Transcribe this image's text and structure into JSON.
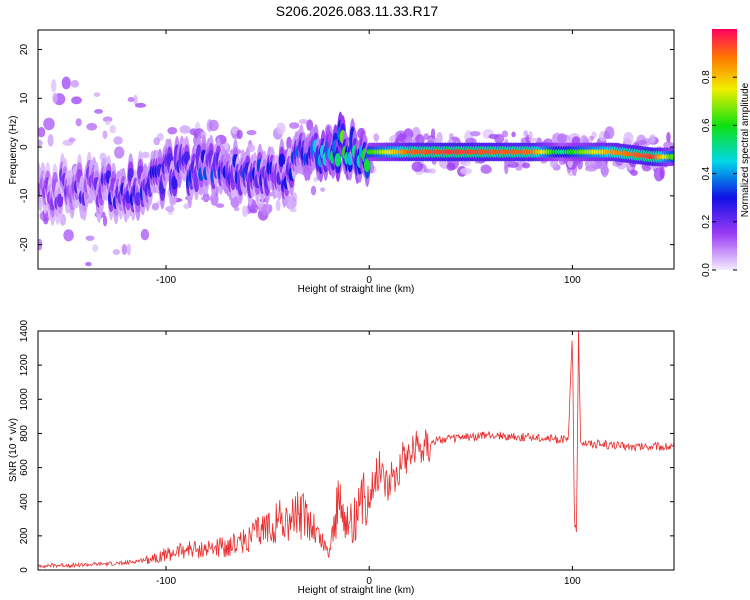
{
  "title": "S206.2026.083.11.33.R17",
  "chart_data": [
    {
      "type": "heatmap",
      "xlabel": "Height of straight line (km)",
      "ylabel": "Frequency (Hz)",
      "xlim": [
        -163,
        150
      ],
      "ylim": [
        -25,
        24
      ],
      "xticks": [
        -100,
        0,
        100
      ],
      "yticks": [
        -20,
        -10,
        0,
        10,
        20
      ],
      "colorbar": {
        "label": "Normalized spectral amplitude",
        "range": [
          0.0,
          1.0
        ],
        "ticks": [
          0.0,
          0.2,
          0.4,
          0.6,
          0.8
        ],
        "tick_labels": [
          "0.0",
          "0.2",
          "0.4",
          "0.6",
          "0.8"
        ]
      },
      "ridge": {
        "x": [
          -160,
          -140,
          -120,
          -100,
          -80,
          -60,
          -40,
          -25,
          -15,
          -5,
          0,
          20,
          40,
          60,
          80,
          95,
          100,
          120,
          140,
          150
        ],
        "freq": [
          -9,
          -8,
          -9,
          -5,
          -4,
          -6,
          -5,
          0,
          0,
          -1,
          -1,
          -1,
          -1,
          -1,
          -1,
          -1,
          -1,
          -1,
          -2,
          -2
        ],
        "amplitude": [
          0.15,
          0.2,
          0.25,
          0.3,
          0.3,
          0.3,
          0.25,
          0.4,
          0.6,
          0.45,
          0.6,
          0.9,
          0.95,
          0.92,
          0.9,
          0.5,
          0.6,
          0.85,
          0.95,
          0.6
        ]
      }
    },
    {
      "type": "line",
      "xlabel": "Height of straight line (km)",
      "ylabel": "SNR (10 * v/v)",
      "xlim": [
        -163,
        150
      ],
      "ylim": [
        0,
        1400
      ],
      "xticks": [
        -100,
        0,
        100
      ],
      "yticks": [
        0,
        200,
        400,
        600,
        800,
        1000,
        1200,
        1400
      ],
      "color": "#e83030",
      "series": [
        {
          "name": "SNR",
          "x": [
            -163,
            -140,
            -120,
            -110,
            -100,
            -90,
            -80,
            -70,
            -60,
            -50,
            -45,
            -40,
            -35,
            -30,
            -25,
            -20,
            -15,
            -10,
            -5,
            0,
            5,
            10,
            15,
            20,
            25,
            30,
            40,
            50,
            60,
            70,
            80,
            90,
            98,
            100,
            101,
            102,
            103,
            104,
            106,
            110,
            120,
            130,
            140,
            150
          ],
          "y": [
            25,
            30,
            40,
            60,
            90,
            120,
            120,
            140,
            180,
            250,
            300,
            280,
            320,
            300,
            200,
            100,
            400,
            250,
            350,
            450,
            600,
            500,
            620,
            700,
            730,
            750,
            770,
            780,
            790,
            780,
            780,
            770,
            760,
            1400,
            300,
            200,
            1400,
            760,
            750,
            740,
            730,
            720,
            725,
            720
          ]
        }
      ]
    }
  ]
}
